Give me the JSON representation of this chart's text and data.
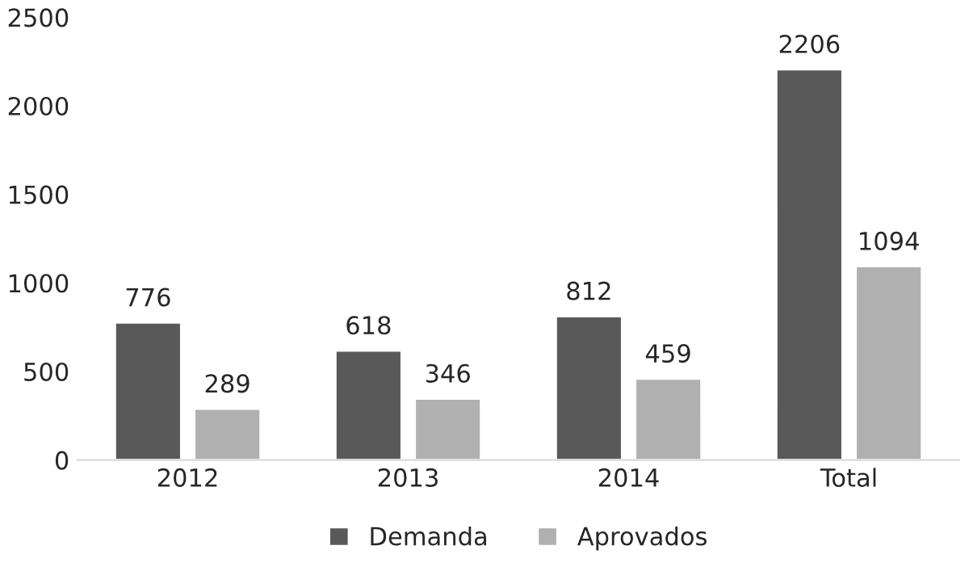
{
  "chart_data": {
    "type": "bar",
    "categories": [
      "2012",
      "2013",
      "2014",
      "Total"
    ],
    "series": [
      {
        "name": "Demanda",
        "color": "#595959",
        "values": [
          776,
          618,
          812,
          2206
        ]
      },
      {
        "name": "Aprovados",
        "color": "#b0b0b0",
        "values": [
          289,
          346,
          459,
          1094
        ]
      }
    ],
    "ylim": [
      0,
      2500
    ],
    "yticks": [
      0,
      500,
      1000,
      1500,
      2000,
      2500
    ],
    "grid": false,
    "legend": "bottom",
    "data_labels": true
  }
}
